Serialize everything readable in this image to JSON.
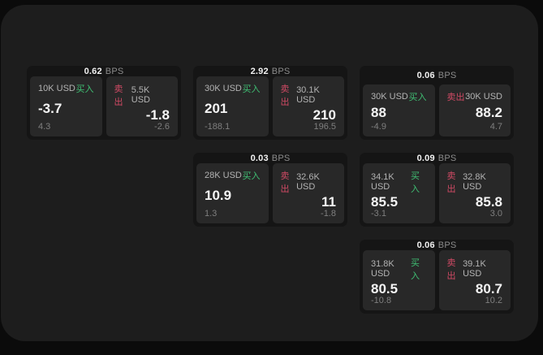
{
  "labels": {
    "bps_unit": "BPS",
    "buy": "买入",
    "sell": "卖出"
  },
  "colors": {
    "buy": "#3fbf73",
    "sell": "#d04a64",
    "panel_bg": "#1d1d1d",
    "card_bg": "#151515",
    "subcard_bg": "#282828"
  },
  "cards": [
    {
      "bps": "0.62",
      "buy": {
        "amount": "10K USD",
        "price": "-3.7",
        "delta": "4.3"
      },
      "sell": {
        "amount": "5.5K USD",
        "price": "-1.8",
        "delta": "-2.6"
      }
    },
    {
      "bps": "2.92",
      "buy": {
        "amount": "30K USD",
        "price": "201",
        "delta": "-188.1"
      },
      "sell": {
        "amount": "30.1K USD",
        "price": "210",
        "delta": "196.5"
      }
    },
    {
      "bps": "0.06",
      "buy": {
        "amount": "30K USD",
        "price": "88",
        "delta": "-4.9"
      },
      "sell": {
        "amount": "30K USD",
        "price": "88.2",
        "delta": "4.7"
      }
    },
    {
      "bps": "0.03",
      "buy": {
        "amount": "28K USD",
        "price": "10.9",
        "delta": "1.3"
      },
      "sell": {
        "amount": "32.6K USD",
        "price": "11",
        "delta": "-1.8"
      }
    },
    {
      "bps": "0.09",
      "buy": {
        "amount": "34.1K USD",
        "price": "85.5",
        "delta": "-3.1"
      },
      "sell": {
        "amount": "32.8K USD",
        "price": "85.8",
        "delta": "3.0"
      }
    },
    {
      "bps": "0.06",
      "buy": {
        "amount": "31.8K USD",
        "price": "80.5",
        "delta": "-10.8"
      },
      "sell": {
        "amount": "39.1K USD",
        "price": "80.7",
        "delta": "10.2"
      }
    }
  ]
}
